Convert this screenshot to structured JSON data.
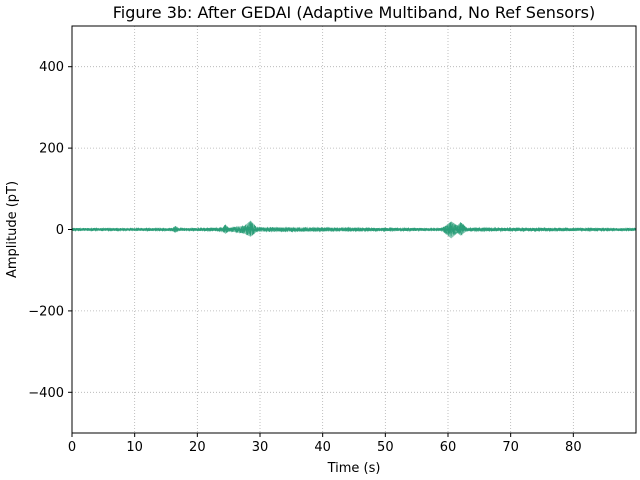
{
  "colors": {
    "signal": "#2a9d78",
    "grid": "#b0b0b0",
    "axis": "#000000",
    "background": "#ffffff"
  },
  "chart_data": {
    "type": "line",
    "title": "Figure 3b: After GEDAI (Adaptive Multiband, No Ref Sensors)",
    "xlabel": "Time (s)",
    "ylabel": "Amplitude (pT)",
    "xlim": [
      0,
      90
    ],
    "ylim": [
      -500,
      500
    ],
    "xticks": [
      0,
      10,
      20,
      30,
      40,
      50,
      60,
      70,
      80
    ],
    "yticks": [
      -400,
      -200,
      0,
      200,
      400
    ],
    "xtick_labels": [
      "0",
      "10",
      "20",
      "30",
      "40",
      "50",
      "60",
      "70",
      "80"
    ],
    "ytick_labels": [
      "−400",
      "−200",
      "0",
      "200",
      "400"
    ],
    "grid": true,
    "grid_style": "dotted",
    "series": [
      {
        "description_of_content": "overlaid multichannel traces centered at 0 pT; small residual bursts near 16.5 s, 24.5 s, 28.5 s, 60.5 s and 62 s",
        "envelope": {
          "t": [
            0,
            16,
            16.5,
            17,
            24,
            24.5,
            25,
            27.5,
            28.5,
            29.5,
            59,
            59.5,
            60.5,
            61.5,
            62,
            63,
            90
          ],
          "upper": [
            3,
            3,
            9,
            3,
            4,
            12,
            4,
            9,
            22,
            5,
            3,
            8,
            20,
            10,
            18,
            4,
            3
          ],
          "lower": [
            -3,
            -3,
            -8,
            -3,
            -4,
            -11,
            -4,
            -10,
            -18,
            -5,
            -3,
            -9,
            -22,
            -9,
            -15,
            -4,
            -3
          ]
        }
      }
    ]
  }
}
